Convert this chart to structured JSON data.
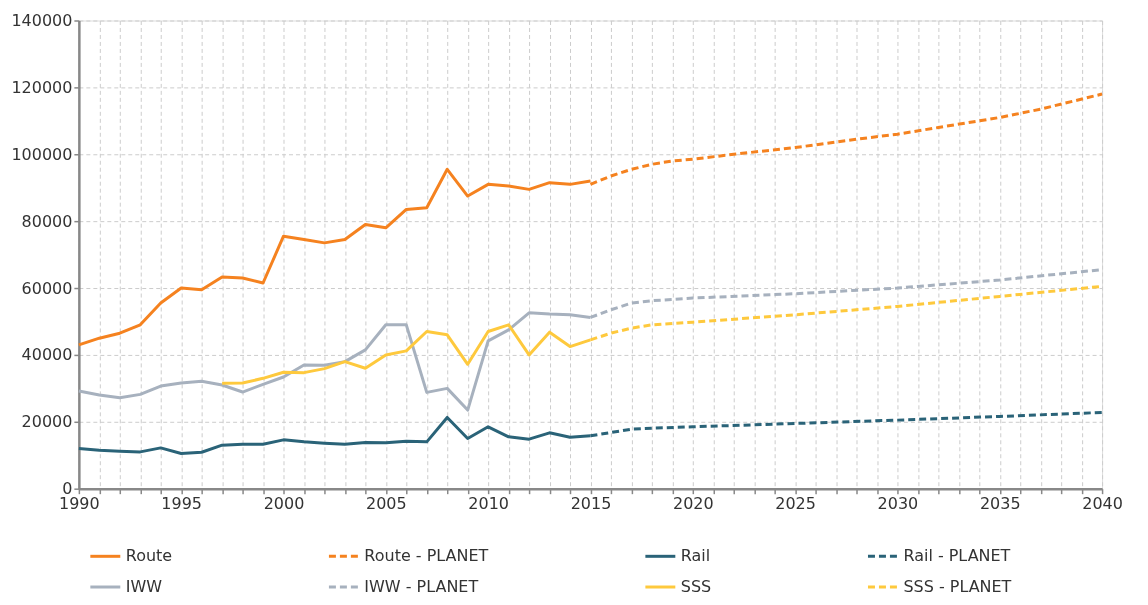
{
  "chart_data": {
    "type": "line",
    "xlim": [
      1990,
      2040
    ],
    "ylim": [
      0,
      140000
    ],
    "xticks": [
      1990,
      {
        "value": 1991,
        "label": null
      },
      {
        "value": 1992,
        "label": null
      },
      {
        "value": 1993,
        "label": null
      },
      {
        "value": 1994,
        "label": null
      },
      1995,
      {
        "value": 1996,
        "label": null
      },
      {
        "value": 1997,
        "label": null
      },
      {
        "value": 1998,
        "label": null
      },
      {
        "value": 1999,
        "label": null
      },
      2000,
      {
        "value": 2001,
        "label": null
      },
      {
        "value": 2002,
        "label": null
      },
      {
        "value": 2003,
        "label": null
      },
      {
        "value": 2004,
        "label": null
      },
      2005,
      {
        "value": 2006,
        "label": null
      },
      {
        "value": 2007,
        "label": null
      },
      {
        "value": 2008,
        "label": null
      },
      {
        "value": 2009,
        "label": null
      },
      2010,
      {
        "value": 2011,
        "label": null
      },
      {
        "value": 2012,
        "label": null
      },
      {
        "value": 2013,
        "label": null
      },
      {
        "value": 2014,
        "label": null
      },
      2015,
      {
        "value": 2016,
        "label": null
      },
      {
        "value": 2017,
        "label": null
      },
      {
        "value": 2018,
        "label": null
      },
      {
        "value": 2019,
        "label": null
      },
      2020,
      {
        "value": 2021,
        "label": null
      },
      {
        "value": 2022,
        "label": null
      },
      {
        "value": 2023,
        "label": null
      },
      {
        "value": 2024,
        "label": null
      },
      2025,
      {
        "value": 2026,
        "label": null
      },
      {
        "value": 2027,
        "label": null
      },
      {
        "value": 2028,
        "label": null
      },
      {
        "value": 2029,
        "label": null
      },
      2030,
      {
        "value": 2031,
        "label": null
      },
      {
        "value": 2032,
        "label": null
      },
      {
        "value": 2033,
        "label": null
      },
      {
        "value": 2034,
        "label": null
      },
      2035,
      {
        "value": 2036,
        "label": null
      },
      {
        "value": 2037,
        "label": null
      },
      {
        "value": 2038,
        "label": null
      },
      {
        "value": 2039,
        "label": null
      },
      2040
    ],
    "yticks": [
      0,
      20000,
      40000,
      60000,
      80000,
      100000,
      120000,
      140000
    ],
    "grid": true,
    "legend": "bottom",
    "marker": "none",
    "series": [
      {
        "name": "Route",
        "color": "#f5821f",
        "line_style": "solid",
        "x": [
          1990,
          1991,
          1992,
          1993,
          1994,
          1995,
          1996,
          1997,
          1998,
          1999,
          2000,
          2001,
          2002,
          2003,
          2004,
          2005,
          2006,
          2007,
          2008,
          2009,
          2010,
          2011,
          2012,
          2013,
          2014,
          2015
        ],
        "values": [
          43000,
          45000,
          46500,
          49000,
          55500,
          60000,
          59500,
          63300,
          63000,
          61500,
          75500,
          74500,
          73500,
          74500,
          79000,
          78000,
          83500,
          84000,
          95500,
          87500,
          91000,
          90500,
          89500,
          91500,
          91000,
          92000
        ]
      },
      {
        "name": "Route - PLANET",
        "color": "#f5821f",
        "line_style": "dashed",
        "x": [
          2015,
          2016,
          2017,
          2018,
          2019,
          2020,
          2022,
          2025,
          2028,
          2030,
          2032,
          2035,
          2037,
          2040
        ],
        "values": [
          91000,
          93500,
          95500,
          97000,
          98000,
          98500,
          100000,
          102000,
          104500,
          106000,
          108000,
          111000,
          113500,
          118000
        ]
      },
      {
        "name": "Rail",
        "color": "#2a6378",
        "line_style": "solid",
        "x": [
          1990,
          1991,
          1992,
          1993,
          1994,
          1995,
          1996,
          1997,
          1998,
          1999,
          2000,
          2001,
          2002,
          2003,
          2004,
          2005,
          2006,
          2007,
          2008,
          2009,
          2010,
          2011,
          2012,
          2013,
          2014,
          2015
        ],
        "values": [
          12000,
          11500,
          11200,
          11000,
          12200,
          10500,
          10900,
          13000,
          13300,
          13300,
          14600,
          14000,
          13600,
          13300,
          13800,
          13700,
          14200,
          14000,
          21300,
          15000,
          18500,
          15500,
          14800,
          16700,
          15400,
          15800
        ]
      },
      {
        "name": "Rail - PLANET",
        "color": "#2a6378",
        "line_style": "dashed",
        "x": [
          2015,
          2016,
          2017,
          2018,
          2020,
          2025,
          2030,
          2035,
          2040
        ],
        "values": [
          15800,
          16800,
          17800,
          18100,
          18500,
          19500,
          20500,
          21600,
          22800
        ]
      },
      {
        "name": "IWW",
        "color": "#a7b1be",
        "line_style": "solid",
        "x": [
          1990,
          1991,
          1992,
          1993,
          1994,
          1995,
          1996,
          1997,
          1998,
          1999,
          2000,
          2001,
          2002,
          2003,
          2004,
          2005,
          2006,
          2007,
          2008,
          2009,
          2010,
          2011,
          2012,
          2013,
          2014,
          2015
        ],
        "values": [
          29200,
          28000,
          27200,
          28200,
          30700,
          31600,
          32100,
          31000,
          28900,
          31200,
          33400,
          37000,
          36900,
          38000,
          41500,
          49000,
          49000,
          28800,
          30000,
          23500,
          44200,
          47500,
          52600,
          52200,
          52000,
          51200
        ]
      },
      {
        "name": "IWW - PLANET",
        "color": "#a7b1be",
        "line_style": "dashed",
        "x": [
          2015,
          2016,
          2017,
          2018,
          2020,
          2025,
          2030,
          2035,
          2040
        ],
        "values": [
          51200,
          53500,
          55500,
          56200,
          57000,
          58300,
          60000,
          62400,
          65500
        ]
      },
      {
        "name": "SSS",
        "color": "#fec93d",
        "line_style": "solid",
        "x": [
          1997,
          1998,
          1999,
          2000,
          2001,
          2002,
          2003,
          2004,
          2005,
          2006,
          2007,
          2008,
          2009,
          2010,
          2011,
          2012,
          2013,
          2014,
          2015
        ],
        "values": [
          31500,
          31600,
          33000,
          34800,
          34700,
          35900,
          38000,
          36000,
          40000,
          41200,
          47000,
          46000,
          37200,
          47000,
          49000,
          40000,
          46800,
          42500,
          44500
        ]
      },
      {
        "name": "SSS - PLANET",
        "color": "#fec93d",
        "line_style": "dashed",
        "x": [
          2015,
          2016,
          2017,
          2018,
          2020,
          2025,
          2030,
          2035,
          2040
        ],
        "values": [
          44500,
          46500,
          48000,
          49000,
          49800,
          52000,
          54500,
          57500,
          60500
        ]
      }
    ]
  }
}
